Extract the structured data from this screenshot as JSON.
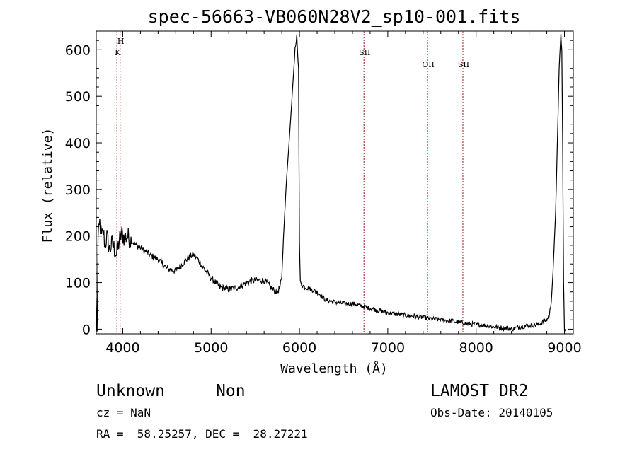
{
  "chart_data": {
    "type": "line",
    "title": "spec-56663-VB060N28V2_sp10-001.fits",
    "xlabel": "Wavelength (Å)",
    "ylabel": "Flux (relative)",
    "xlim": [
      3700,
      9100
    ],
    "ylim": [
      -10,
      640
    ],
    "x_ticks": [
      "4000",
      "5000",
      "6000",
      "7000",
      "8000",
      "9000"
    ],
    "y_ticks": [
      "0",
      "100",
      "200",
      "300",
      "400",
      "500",
      "600"
    ],
    "grid": false,
    "series": [
      {
        "x": [
          3700,
          3710,
          3720,
          3740,
          3760,
          3780,
          3800,
          3820,
          3850,
          3880,
          3900,
          3930,
          3960,
          3990,
          4020,
          4050,
          4100,
          4150,
          4200,
          4300,
          4400,
          4500,
          4600,
          4700,
          4750,
          4800,
          4850,
          4900,
          5000,
          5100,
          5200,
          5300,
          5400,
          5500,
          5600,
          5650,
          5700,
          5750,
          5780,
          5800,
          5820,
          5850,
          5900,
          5950,
          5970,
          5990,
          6000,
          6010,
          6030,
          6060,
          6100,
          6200,
          6300,
          6400,
          6500,
          6600,
          6700,
          6800,
          6900,
          7000,
          7100,
          7200,
          7300,
          7400,
          7500,
          7600,
          7700,
          7800,
          7900,
          8000,
          8100,
          8200,
          8300,
          8400,
          8500,
          8600,
          8700,
          8750,
          8800,
          8830,
          8850,
          8870,
          8900,
          8920,
          8940,
          8960,
          8970,
          8980,
          8990,
          9000,
          9010
        ],
        "y": [
          60,
          -5,
          190,
          230,
          195,
          210,
          180,
          200,
          170,
          185,
          175,
          160,
          190,
          205,
          195,
          200,
          190,
          180,
          175,
          160,
          150,
          130,
          125,
          145,
          155,
          160,
          150,
          135,
          110,
          90,
          85,
          90,
          100,
          105,
          105,
          95,
          85,
          80,
          90,
          110,
          200,
          310,
          450,
          600,
          630,
          560,
          180,
          100,
          95,
          90,
          88,
          80,
          62,
          58,
          55,
          55,
          50,
          45,
          40,
          35,
          32,
          30,
          28,
          25,
          22,
          20,
          18,
          15,
          12,
          10,
          8,
          5,
          3,
          0,
          5,
          8,
          10,
          15,
          20,
          30,
          60,
          120,
          250,
          400,
          560,
          630,
          600,
          400,
          100,
          0,
          0
        ]
      }
    ],
    "lines": [
      {
        "label": "H",
        "x": 3970
      },
      {
        "label": "K",
        "x": 3934
      },
      {
        "label": "SII",
        "x": 6730
      },
      {
        "label": "OII",
        "x": 7450
      },
      {
        "label": "SII",
        "x": 7850
      }
    ]
  },
  "info": {
    "object_type": "Unknown",
    "object_class": "Non",
    "survey": "LAMOST DR2",
    "cz": "cz = NaN",
    "obs_date": "Obs-Date: 20140105",
    "coords": "RA =  58.25257, DEC =  28.27221"
  }
}
